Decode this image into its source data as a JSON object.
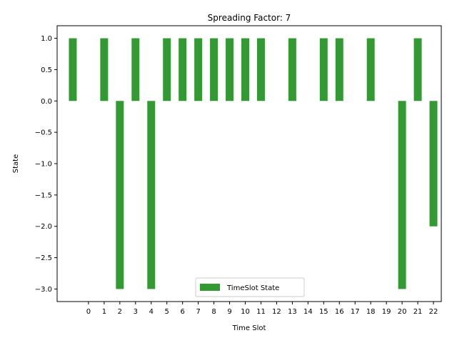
{
  "chart_data": {
    "type": "bar",
    "title": "Spreading Factor: 7",
    "xlabel": "Time Slot",
    "ylabel": "State",
    "xlim": [
      -2,
      22.5
    ],
    "ylim": [
      -3.2,
      1.2
    ],
    "x_ticks": [
      0,
      1,
      2,
      3,
      4,
      5,
      6,
      7,
      8,
      9,
      10,
      11,
      12,
      13,
      14,
      15,
      16,
      17,
      18,
      19,
      20,
      21,
      22
    ],
    "y_ticks": [
      -3.0,
      -2.5,
      -2.0,
      -1.5,
      -1.0,
      -0.5,
      0.0,
      0.5,
      1.0
    ],
    "y_tick_labels": [
      "−3.0",
      "−2.5",
      "−2.0",
      "−1.5",
      "−1.0",
      "−0.5",
      "0.0",
      "0.5",
      "1.0"
    ],
    "bar_width": 0.5,
    "grid": false,
    "legend_position": "bottom-center",
    "series": [
      {
        "name": "TimeSlot State",
        "color": "#339933",
        "x": [
          -1,
          1,
          2,
          3,
          4,
          5,
          6,
          7,
          8,
          9,
          10,
          11,
          13,
          15,
          16,
          18,
          20,
          21,
          22
        ],
        "values": [
          1,
          1,
          -3,
          1,
          -3,
          1,
          1,
          1,
          1,
          1,
          1,
          1,
          1,
          1,
          1,
          1,
          -3,
          1,
          -2
        ]
      }
    ]
  }
}
